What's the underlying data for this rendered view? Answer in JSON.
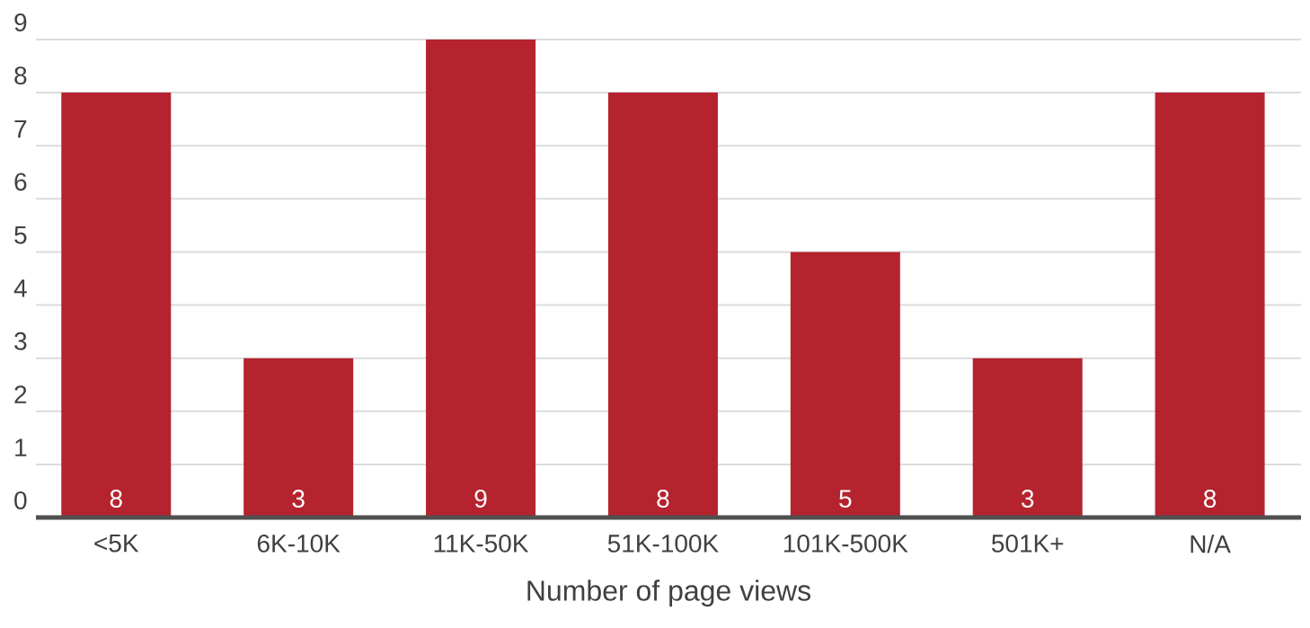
{
  "chart_data": {
    "type": "bar",
    "xlabel": "Number of page views",
    "categories": [
      "<5K",
      "6K-10K",
      "11K-50K",
      "51K-100K",
      "101K-500K",
      "501K+",
      "N/A"
    ],
    "values": [
      8,
      3,
      9,
      8,
      5,
      3,
      8
    ],
    "color": "#b5232e",
    "ylim": [
      0,
      9
    ],
    "yticks": [
      0,
      1,
      2,
      3,
      4,
      5,
      6,
      7,
      8,
      9
    ],
    "grid": "y",
    "data_labels": true
  }
}
